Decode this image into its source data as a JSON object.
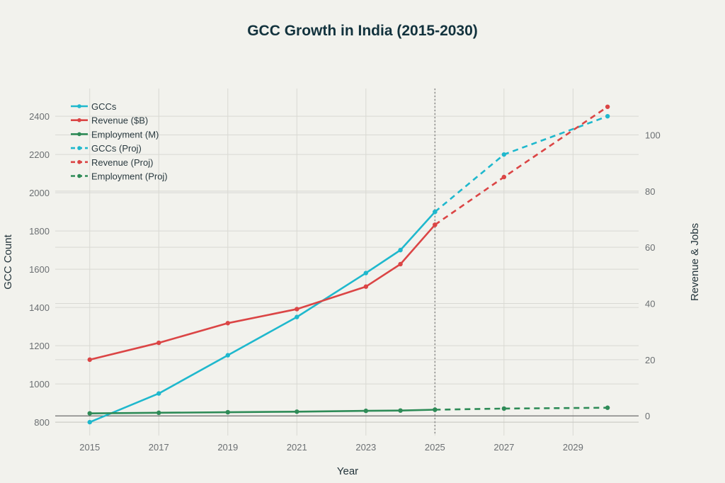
{
  "chart_data": {
    "type": "line",
    "title": "GCC Growth in India (2015-2030)",
    "xlabel": "Year",
    "ylabel": "GCC Count",
    "y2label": "Revenue & Jobs",
    "x_ticks": [
      2015,
      2017,
      2019,
      2021,
      2023,
      2025,
      2027,
      2029
    ],
    "xlim": [
      2014,
      2030.9
    ],
    "ylim": [
      730,
      2545
    ],
    "y_ticks": [
      800,
      1000,
      1200,
      1400,
      1600,
      1800,
      2000,
      2200,
      2400
    ],
    "y2lim": [
      -7,
      116.5
    ],
    "y2_ticks": [
      0,
      20,
      40,
      60,
      80,
      100
    ],
    "grid": true,
    "legend_position": "top-left",
    "projection_marker": {
      "x": 2025,
      "style": "dotted"
    },
    "series": [
      {
        "name": "GCCs",
        "axis": "left",
        "color": "#1fb8cd",
        "dash": false,
        "x": [
          2015,
          2017,
          2019,
          2021,
          2023,
          2024,
          2025
        ],
        "values": [
          800,
          950,
          1150,
          1350,
          1580,
          1700,
          1900
        ]
      },
      {
        "name": "Revenue ($B)",
        "axis": "right",
        "color": "#db4545",
        "dash": false,
        "x": [
          2015,
          2017,
          2019,
          2021,
          2023,
          2024,
          2025
        ],
        "values": [
          20,
          26,
          33,
          38,
          46,
          54,
          68
        ]
      },
      {
        "name": "Employment (M)",
        "axis": "right",
        "color": "#2e8b57",
        "dash": false,
        "x": [
          2015,
          2017,
          2019,
          2021,
          2023,
          2024,
          2025
        ],
        "values": [
          0.9,
          1.1,
          1.3,
          1.5,
          1.8,
          1.9,
          2.2
        ]
      },
      {
        "name": "GCCs (Proj)",
        "axis": "left",
        "color": "#1fb8cd",
        "dash": true,
        "x": [
          2025,
          2027,
          2030
        ],
        "values": [
          1900,
          2200,
          2400
        ]
      },
      {
        "name": "Revenue (Proj)",
        "axis": "right",
        "color": "#db4545",
        "dash": true,
        "x": [
          2025,
          2027,
          2030
        ],
        "values": [
          68,
          85,
          110
        ]
      },
      {
        "name": "Employment (Proj)",
        "axis": "right",
        "color": "#2e8b57",
        "dash": true,
        "x": [
          2025,
          2027,
          2030
        ],
        "values": [
          2.2,
          2.6,
          2.9
        ]
      }
    ]
  }
}
